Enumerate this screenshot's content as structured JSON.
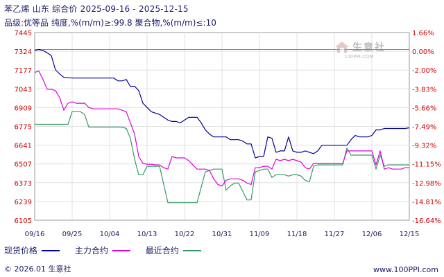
{
  "header": {
    "title": "苯乙烯 山东 综合价 2025-09-16 - 2025-12-15",
    "subtitle": "品级:优等品 纯度,%(m/m)≥:99.8 聚合物,%(m/m)≤:10"
  },
  "watermark": {
    "text": "生意社",
    "url": "100PPI.COM"
  },
  "legend": {
    "items": [
      {
        "label": "现货价格",
        "color": "#000099"
      },
      {
        "label": "主力合约",
        "color": "#dd00dd"
      },
      {
        "label": "最近合约",
        "color": "#339966"
      }
    ]
  },
  "footer": {
    "copyright": "© 2026.01 生意社",
    "site": "www.100PPI.com"
  },
  "chart_data": {
    "type": "line",
    "title": "",
    "left_ticks": [
      "7445",
      "7324",
      "7177",
      "7043",
      "6909",
      "6775",
      "6641",
      "6507",
      "6373",
      "6239",
      "6105"
    ],
    "right_ticks": [
      "1.66%",
      "0.00%",
      "-2.00%",
      "-3.83%",
      "-5.66%",
      "-7.49%",
      "-9.32%",
      "-11.15%",
      "-12.98%",
      "-14.81%",
      "-16.64%"
    ],
    "x_ticks": [
      "09/16",
      "09/25",
      "10/04",
      "10/13",
      "10/22",
      "10/31",
      "11/09",
      "11/18",
      "11/27",
      "12/06",
      "12/15"
    ],
    "ylim": [
      6105,
      7445
    ],
    "baseline_value": 7324,
    "x_range_days": 90,
    "grid": true,
    "colors": {
      "spot": "#000099",
      "main": "#dd00dd",
      "near": "#339966"
    },
    "series": [
      {
        "name": "现货价格",
        "points": [
          [
            0,
            7317
          ],
          [
            1,
            7324
          ],
          [
            2,
            7317
          ],
          [
            3,
            7300
          ],
          [
            4,
            7280
          ],
          [
            5,
            7178
          ],
          [
            6,
            7150
          ],
          [
            7,
            7125
          ],
          [
            9,
            7120
          ],
          [
            13,
            7120
          ],
          [
            19,
            7120
          ],
          [
            20,
            7100
          ],
          [
            21,
            7100
          ],
          [
            22,
            7110
          ],
          [
            23,
            7060
          ],
          [
            24,
            7062
          ],
          [
            25,
            7030
          ],
          [
            26,
            6940
          ],
          [
            27,
            6910
          ],
          [
            28,
            6880
          ],
          [
            29,
            6870
          ],
          [
            30,
            6860
          ],
          [
            31,
            6840
          ],
          [
            32,
            6820
          ],
          [
            33,
            6810
          ],
          [
            34,
            6810
          ],
          [
            35,
            6800
          ],
          [
            36,
            6820
          ],
          [
            37,
            6840
          ],
          [
            38,
            6840
          ],
          [
            39,
            6840
          ],
          [
            40,
            6800
          ],
          [
            41,
            6750
          ],
          [
            42,
            6720
          ],
          [
            43,
            6700
          ],
          [
            44,
            6700
          ],
          [
            45,
            6700
          ],
          [
            46,
            6700
          ],
          [
            47,
            6680
          ],
          [
            48,
            6680
          ],
          [
            49,
            6680
          ],
          [
            50,
            6670
          ],
          [
            51,
            6650
          ],
          [
            52,
            6650
          ],
          [
            53,
            6550
          ],
          [
            54,
            6560
          ],
          [
            55,
            6560
          ],
          [
            56,
            6700
          ],
          [
            57,
            6690
          ],
          [
            58,
            6590
          ],
          [
            59,
            6600
          ],
          [
            60,
            6600
          ],
          [
            61,
            6700
          ],
          [
            62,
            6600
          ],
          [
            63,
            6590
          ],
          [
            64,
            6590
          ],
          [
            65,
            6600
          ],
          [
            66,
            6590
          ],
          [
            67,
            6580
          ],
          [
            68,
            6600
          ],
          [
            69,
            6640
          ],
          [
            70,
            6640
          ],
          [
            71,
            6640
          ],
          [
            72,
            6640
          ],
          [
            73,
            6640
          ],
          [
            74,
            6640
          ],
          [
            75,
            6640
          ],
          [
            76,
            6680
          ],
          [
            77,
            6710
          ],
          [
            78,
            6700
          ],
          [
            79,
            6700
          ],
          [
            80,
            6700
          ],
          [
            81,
            6710
          ],
          [
            82,
            6750
          ],
          [
            83,
            6750
          ],
          [
            84,
            6760
          ],
          [
            85,
            6760
          ],
          [
            86,
            6760
          ],
          [
            87,
            6760
          ],
          [
            88,
            6760
          ],
          [
            89,
            6760
          ],
          [
            90,
            6765
          ]
        ]
      },
      {
        "name": "主力合约",
        "points": [
          [
            0,
            7160
          ],
          [
            1,
            7170
          ],
          [
            2,
            7110
          ],
          [
            3,
            7040
          ],
          [
            4,
            7040
          ],
          [
            5,
            7030
          ],
          [
            6,
            6980
          ],
          [
            7,
            6890
          ],
          [
            8,
            6940
          ],
          [
            9,
            6950
          ],
          [
            10,
            6940
          ],
          [
            11,
            6940
          ],
          [
            12,
            6940
          ],
          [
            13,
            6910
          ],
          [
            14,
            6900
          ],
          [
            15,
            6900
          ],
          [
            16,
            6900
          ],
          [
            17,
            6900
          ],
          [
            18,
            6900
          ],
          [
            19,
            6900
          ],
          [
            20,
            6900
          ],
          [
            21,
            6890
          ],
          [
            22,
            6880
          ],
          [
            23,
            6800
          ],
          [
            24,
            6720
          ],
          [
            25,
            6560
          ],
          [
            26,
            6510
          ],
          [
            27,
            6505
          ],
          [
            28,
            6505
          ],
          [
            29,
            6500
          ],
          [
            30,
            6500
          ],
          [
            31,
            6480
          ],
          [
            32,
            6470
          ],
          [
            33,
            6560
          ],
          [
            34,
            6550
          ],
          [
            35,
            6550
          ],
          [
            36,
            6550
          ],
          [
            37,
            6530
          ],
          [
            38,
            6500
          ],
          [
            39,
            6470
          ],
          [
            40,
            6470
          ],
          [
            41,
            6470
          ],
          [
            42,
            6460
          ],
          [
            43,
            6400
          ],
          [
            44,
            6360
          ],
          [
            45,
            6350
          ],
          [
            46,
            6390
          ],
          [
            47,
            6400
          ],
          [
            48,
            6400
          ],
          [
            49,
            6400
          ],
          [
            50,
            6390
          ],
          [
            51,
            6370
          ],
          [
            52,
            6360
          ],
          [
            53,
            6480
          ],
          [
            54,
            6480
          ],
          [
            55,
            6490
          ],
          [
            56,
            6490
          ],
          [
            57,
            6470
          ],
          [
            58,
            6540
          ],
          [
            59,
            6530
          ],
          [
            60,
            6540
          ],
          [
            61,
            6530
          ],
          [
            62,
            6540
          ],
          [
            63,
            6530
          ],
          [
            64,
            6520
          ],
          [
            65,
            6480
          ],
          [
            66,
            6470
          ],
          [
            67,
            6510
          ],
          [
            68,
            6510
          ],
          [
            69,
            6510
          ],
          [
            70,
            6510
          ],
          [
            71,
            6510
          ],
          [
            72,
            6510
          ],
          [
            73,
            6510
          ],
          [
            74,
            6510
          ],
          [
            75,
            6600
          ],
          [
            76,
            6600
          ],
          [
            77,
            6600
          ],
          [
            78,
            6600
          ],
          [
            79,
            6600
          ],
          [
            80,
            6600
          ],
          [
            81,
            6600
          ],
          [
            82,
            6500
          ],
          [
            83,
            6600
          ],
          [
            84,
            6470
          ],
          [
            85,
            6480
          ],
          [
            86,
            6470
          ],
          [
            87,
            6470
          ],
          [
            88,
            6470
          ],
          [
            89,
            6480
          ],
          [
            90,
            6480
          ]
        ]
      },
      {
        "name": "最近合约",
        "points": [
          [
            0,
            6790
          ],
          [
            1,
            6790
          ],
          [
            2,
            6790
          ],
          [
            3,
            6790
          ],
          [
            4,
            6790
          ],
          [
            5,
            6790
          ],
          [
            6,
            6790
          ],
          [
            7,
            6790
          ],
          [
            8,
            6790
          ],
          [
            9,
            6880
          ],
          [
            10,
            6880
          ],
          [
            11,
            6880
          ],
          [
            12,
            6860
          ],
          [
            13,
            6770
          ],
          [
            14,
            6770
          ],
          [
            15,
            6770
          ],
          [
            16,
            6770
          ],
          [
            17,
            6770
          ],
          [
            18,
            6770
          ],
          [
            19,
            6770
          ],
          [
            20,
            6770
          ],
          [
            21,
            6770
          ],
          [
            22,
            6760
          ],
          [
            23,
            6690
          ],
          [
            24,
            6540
          ],
          [
            25,
            6430
          ],
          [
            26,
            6430
          ],
          [
            27,
            6490
          ],
          [
            28,
            6490
          ],
          [
            29,
            6490
          ],
          [
            30,
            6490
          ],
          [
            31,
            6360
          ],
          [
            32,
            6230
          ],
          [
            33,
            6230
          ],
          [
            34,
            6230
          ],
          [
            35,
            6230
          ],
          [
            36,
            6230
          ],
          [
            37,
            6230
          ],
          [
            38,
            6230
          ],
          [
            39,
            6230
          ],
          [
            40,
            6340
          ],
          [
            41,
            6450
          ],
          [
            42,
            6460
          ],
          [
            43,
            6470
          ],
          [
            44,
            6470
          ],
          [
            45,
            6470
          ],
          [
            46,
            6320
          ],
          [
            47,
            6350
          ],
          [
            48,
            6370
          ],
          [
            49,
            6370
          ],
          [
            50,
            6310
          ],
          [
            51,
            6250
          ],
          [
            52,
            6250
          ],
          [
            53,
            6450
          ],
          [
            54,
            6460
          ],
          [
            55,
            6470
          ],
          [
            56,
            6470
          ],
          [
            57,
            6410
          ],
          [
            58,
            6430
          ],
          [
            59,
            6430
          ],
          [
            60,
            6430
          ],
          [
            61,
            6420
          ],
          [
            62,
            6430
          ],
          [
            63,
            6430
          ],
          [
            64,
            6420
          ],
          [
            65,
            6390
          ],
          [
            66,
            6380
          ],
          [
            67,
            6490
          ],
          [
            68,
            6500
          ],
          [
            69,
            6500
          ],
          [
            70,
            6500
          ],
          [
            71,
            6500
          ],
          [
            72,
            6500
          ],
          [
            73,
            6500
          ],
          [
            74,
            6500
          ],
          [
            75,
            6620
          ],
          [
            76,
            6570
          ],
          [
            77,
            6570
          ],
          [
            78,
            6570
          ],
          [
            79,
            6570
          ],
          [
            80,
            6570
          ],
          [
            81,
            6570
          ],
          [
            82,
            6470
          ],
          [
            83,
            6570
          ],
          [
            84,
            6490
          ],
          [
            85,
            6500
          ],
          [
            86,
            6500
          ],
          [
            87,
            6500
          ],
          [
            88,
            6500
          ],
          [
            89,
            6500
          ],
          [
            90,
            6500
          ]
        ]
      }
    ]
  }
}
